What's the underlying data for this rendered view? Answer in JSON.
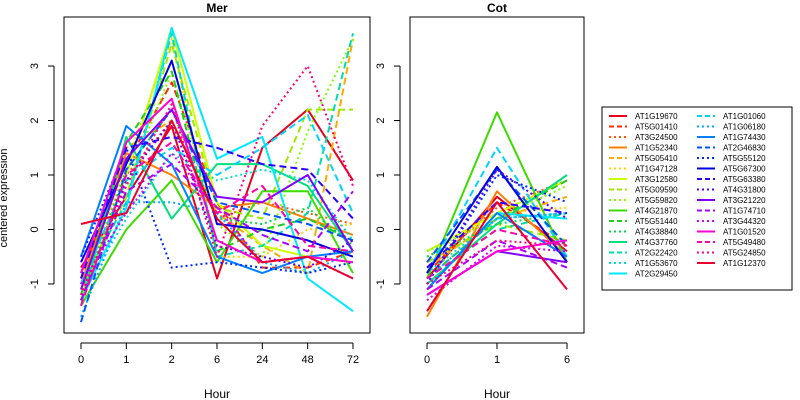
{
  "y_axis_label": "centered expression",
  "chart_data": [
    {
      "type": "line",
      "title": "Mer",
      "xlabel": "Hour",
      "ylabel": "centered expression",
      "categories": [
        "0",
        "1",
        "2",
        "6",
        "24",
        "48",
        "72"
      ],
      "yticks": [
        -1,
        0,
        1,
        2,
        3
      ],
      "ylim": [
        -1.9,
        3.9
      ],
      "grid": false,
      "series": [
        {
          "name": "AT1G19670",
          "values": [
            -0.7,
            0.6,
            1.9,
            -0.9,
            1.5,
            2.2,
            0.9
          ]
        },
        {
          "name": "AT5G01410",
          "values": [
            -0.8,
            1.2,
            2.7,
            0.5,
            -0.7,
            -0.7,
            -0.4
          ]
        },
        {
          "name": "AT3G24500",
          "values": [
            -0.9,
            1.0,
            2.0,
            0.2,
            0.5,
            0.3,
            0.1
          ]
        },
        {
          "name": "AT1G52340",
          "values": [
            -1.0,
            1.4,
            1.0,
            0.4,
            0.5,
            0.2,
            -0.1
          ]
        },
        {
          "name": "AT5G05410",
          "values": [
            -1.3,
            1.5,
            2.0,
            0.3,
            -0.3,
            -0.8,
            3.5
          ]
        },
        {
          "name": "AT1G47128",
          "values": [
            -1.2,
            1.2,
            3.5,
            -0.5,
            -0.5,
            0.0,
            0.1
          ]
        },
        {
          "name": "AT3G12580",
          "values": [
            -1.3,
            1.0,
            3.7,
            0.5,
            -0.3,
            -0.5,
            -0.6
          ]
        },
        {
          "name": "AT5G09590",
          "values": [
            -1.1,
            0.6,
            3.4,
            0.4,
            0.2,
            2.2,
            2.2
          ]
        },
        {
          "name": "AT5G59820",
          "values": [
            -1.2,
            0.8,
            2.9,
            0.1,
            -0.5,
            1.8,
            3.5
          ]
        },
        {
          "name": "AT4G21870",
          "values": [
            -1.4,
            0.0,
            0.9,
            -0.6,
            0.7,
            0.7,
            -0.8
          ]
        },
        {
          "name": "AT5G51440",
          "values": [
            -1.2,
            1.6,
            2.9,
            -0.4,
            0.0,
            0.2,
            -0.2
          ]
        },
        {
          "name": "AT4G38840",
          "values": [
            -1.3,
            1.1,
            2.2,
            0.2,
            0.1,
            0.4,
            -0.3
          ]
        },
        {
          "name": "AT4G37760",
          "values": [
            -1.4,
            1.7,
            0.2,
            1.2,
            1.2,
            0.8,
            -0.4
          ]
        },
        {
          "name": "AT2G22420",
          "values": [
            -1.0,
            0.5,
            3.6,
            -0.5,
            -0.3,
            0.3,
            3.6
          ]
        },
        {
          "name": "AT1G53670",
          "values": [
            -1.2,
            0.2,
            1.4,
            0.9,
            1.1,
            0.9,
            -0.2
          ]
        },
        {
          "name": "AT2G29450",
          "values": [
            -1.3,
            0.4,
            3.7,
            1.3,
            1.7,
            -0.9,
            -1.5
          ]
        },
        {
          "name": "AT1G01060",
          "values": [
            -1.0,
            0.9,
            1.5,
            1.0,
            1.5,
            2.1,
            0.3
          ]
        },
        {
          "name": "AT1G06180",
          "values": [
            -1.6,
            0.5,
            0.5,
            0.3,
            -0.6,
            -0.8,
            -0.4
          ]
        },
        {
          "name": "AT1G74430",
          "values": [
            -0.5,
            1.9,
            1.2,
            -0.5,
            -0.8,
            -0.5,
            -0.4
          ]
        },
        {
          "name": "AT2G46830",
          "values": [
            -1.7,
            1.1,
            2.2,
            0.5,
            0.3,
            0.1,
            -0.2
          ]
        },
        {
          "name": "AT5G55120",
          "values": [
            -0.5,
            1.5,
            -0.7,
            -0.6,
            -0.7,
            -0.8,
            -0.6
          ]
        },
        {
          "name": "AT5G67300",
          "values": [
            -0.6,
            1.2,
            3.1,
            0.1,
            0.0,
            -0.2,
            -0.5
          ]
        },
        {
          "name": "AT5G63380",
          "values": [
            -0.9,
            1.5,
            1.7,
            1.5,
            1.2,
            1.1,
            0.2
          ]
        },
        {
          "name": "AT4G31800",
          "values": [
            -1.3,
            0.9,
            2.0,
            -0.3,
            -0.5,
            -0.7,
            -0.2
          ]
        },
        {
          "name": "AT3G21220",
          "values": [
            -1.1,
            1.3,
            2.2,
            0.6,
            0.5,
            1.0,
            -0.4
          ]
        },
        {
          "name": "AT1G74710",
          "values": [
            -1.3,
            0.7,
            1.2,
            0.4,
            -0.1,
            -0.4,
            0.7
          ]
        },
        {
          "name": "AT3G44320",
          "values": [
            -1.0,
            0.3,
            1.4,
            0.4,
            -0.6,
            -0.5,
            -0.9
          ]
        },
        {
          "name": "AT1G01520",
          "values": [
            -0.8,
            1.6,
            2.4,
            -0.2,
            -0.6,
            -0.5,
            -0.6
          ]
        },
        {
          "name": "AT5G49480",
          "values": [
            -1.4,
            1.0,
            1.6,
            0.3,
            0.8,
            -0.3,
            -0.4
          ]
        },
        {
          "name": "AT5G24850",
          "values": [
            -1.2,
            0.8,
            2.3,
            -0.5,
            1.9,
            3.0,
            0.8
          ]
        },
        {
          "name": "AT1G12370",
          "values": [
            0.1,
            0.3,
            2.0,
            0.2,
            -0.6,
            -0.5,
            -0.9
          ]
        }
      ]
    },
    {
      "type": "line",
      "title": "Cot",
      "xlabel": "Hour",
      "categories": [
        "0",
        "1",
        "6"
      ],
      "yticks": [
        -1,
        0,
        1,
        2,
        3
      ],
      "ylim": [
        -1.9,
        3.9
      ],
      "grid": false,
      "series": [
        {
          "name": "AT1G19670",
          "values": [
            -0.9,
            0.6,
            -0.4
          ]
        },
        {
          "name": "AT5G01410",
          "values": [
            -0.8,
            0.5,
            -0.3
          ]
        },
        {
          "name": "AT3G24500",
          "values": [
            -0.7,
            0.4,
            0.9
          ]
        },
        {
          "name": "AT1G52340",
          "values": [
            -1.6,
            0.7,
            -0.5
          ]
        },
        {
          "name": "AT5G05410",
          "values": [
            -0.7,
            0.2,
            0.6
          ]
        },
        {
          "name": "AT1G47128",
          "values": [
            -0.5,
            0.3,
            0.4
          ]
        },
        {
          "name": "AT3G12580",
          "values": [
            -0.4,
            0.3,
            0.9
          ]
        },
        {
          "name": "AT5G09590",
          "values": [
            -0.6,
            0.1,
            -0.2
          ]
        },
        {
          "name": "AT5G59820",
          "values": [
            -0.4,
            0.2,
            0.8
          ]
        },
        {
          "name": "AT4G21870",
          "values": [
            -0.9,
            2.15,
            -0.6
          ]
        },
        {
          "name": "AT5G51440",
          "values": [
            -0.9,
            0.2,
            0.9
          ]
        },
        {
          "name": "AT4G38840",
          "values": [
            -0.5,
            0.1,
            0.3
          ]
        },
        {
          "name": "AT4G37760",
          "values": [
            -1.0,
            0.1,
            1.0
          ]
        },
        {
          "name": "AT2G22420",
          "values": [
            -0.9,
            0.0,
            0.3
          ]
        },
        {
          "name": "AT1G53670",
          "values": [
            -0.8,
            0.2,
            0.3
          ]
        },
        {
          "name": "AT2G29450",
          "values": [
            -1.1,
            0.3,
            0.2
          ]
        },
        {
          "name": "AT1G01060",
          "values": [
            -0.8,
            1.5,
            -0.5
          ]
        },
        {
          "name": "AT1G06180",
          "values": [
            -0.9,
            0.2,
            0.3
          ]
        },
        {
          "name": "AT1G74430",
          "values": [
            -1.1,
            0.3,
            -0.5
          ]
        },
        {
          "name": "AT2G46830",
          "values": [
            -0.6,
            1.1,
            -0.3
          ]
        },
        {
          "name": "AT5G55120",
          "values": [
            -1.0,
            1.0,
            0.5
          ]
        },
        {
          "name": "AT5G67300",
          "values": [
            -0.8,
            1.15,
            -0.6
          ]
        },
        {
          "name": "AT5G63380",
          "values": [
            -0.7,
            0.5,
            0.3
          ]
        },
        {
          "name": "AT4G31800",
          "values": [
            -1.0,
            1.1,
            0.2
          ]
        },
        {
          "name": "AT3G21220",
          "values": [
            -1.2,
            -0.4,
            -0.6
          ]
        },
        {
          "name": "AT1G74710",
          "values": [
            -1.1,
            -0.2,
            -0.7
          ]
        },
        {
          "name": "AT3G44320",
          "values": [
            -1.3,
            -0.3,
            -0.4
          ]
        },
        {
          "name": "AT1G01520",
          "values": [
            -1.2,
            -0.4,
            -0.2
          ]
        },
        {
          "name": "AT5G49480",
          "values": [
            -0.9,
            0.0,
            -0.3
          ]
        },
        {
          "name": "AT5G24850",
          "values": [
            -1.0,
            -0.2,
            -0.3
          ]
        },
        {
          "name": "AT1G12370",
          "values": [
            -1.5,
            0.5,
            -1.1
          ]
        }
      ]
    }
  ],
  "series_styles": [
    {
      "color": "#e8001c",
      "dash": "solid"
    },
    {
      "color": "#ff2a00",
      "dash": "dashed"
    },
    {
      "color": "#ff5500",
      "dash": "dotted"
    },
    {
      "color": "#ff8000",
      "dash": "solid"
    },
    {
      "color": "#ffaa00",
      "dash": "dashed"
    },
    {
      "color": "#ffd400",
      "dash": "dotted"
    },
    {
      "color": "#ccff00",
      "dash": "solid"
    },
    {
      "color": "#a0e800",
      "dash": "dashed"
    },
    {
      "color": "#7fff00",
      "dash": "dotted"
    },
    {
      "color": "#3ddc00",
      "dash": "solid"
    },
    {
      "color": "#1fcc1f",
      "dash": "dashed"
    },
    {
      "color": "#00d84a",
      "dash": "dotted"
    },
    {
      "color": "#00e07a",
      "dash": "solid"
    },
    {
      "color": "#00dca8",
      "dash": "dashed"
    },
    {
      "color": "#00e0cc",
      "dash": "dotted"
    },
    {
      "color": "#00e8ff",
      "dash": "solid"
    },
    {
      "color": "#00d4ff",
      "dash": "dashed"
    },
    {
      "color": "#00aaff",
      "dash": "dotted"
    },
    {
      "color": "#0080ff",
      "dash": "solid"
    },
    {
      "color": "#0055ff",
      "dash": "dashed"
    },
    {
      "color": "#002aff",
      "dash": "dotted"
    },
    {
      "color": "#0000e0",
      "dash": "solid"
    },
    {
      "color": "#2a00ff",
      "dash": "dashed"
    },
    {
      "color": "#5500ff",
      "dash": "dotted"
    },
    {
      "color": "#8000ff",
      "dash": "solid"
    },
    {
      "color": "#aa00ff",
      "dash": "dashed"
    },
    {
      "color": "#d400ff",
      "dash": "dotted"
    },
    {
      "color": "#ff00d4",
      "dash": "solid"
    },
    {
      "color": "#ff00aa",
      "dash": "dashed"
    },
    {
      "color": "#ff0080",
      "dash": "dotted"
    },
    {
      "color": "#e80030",
      "dash": "solid"
    }
  ]
}
